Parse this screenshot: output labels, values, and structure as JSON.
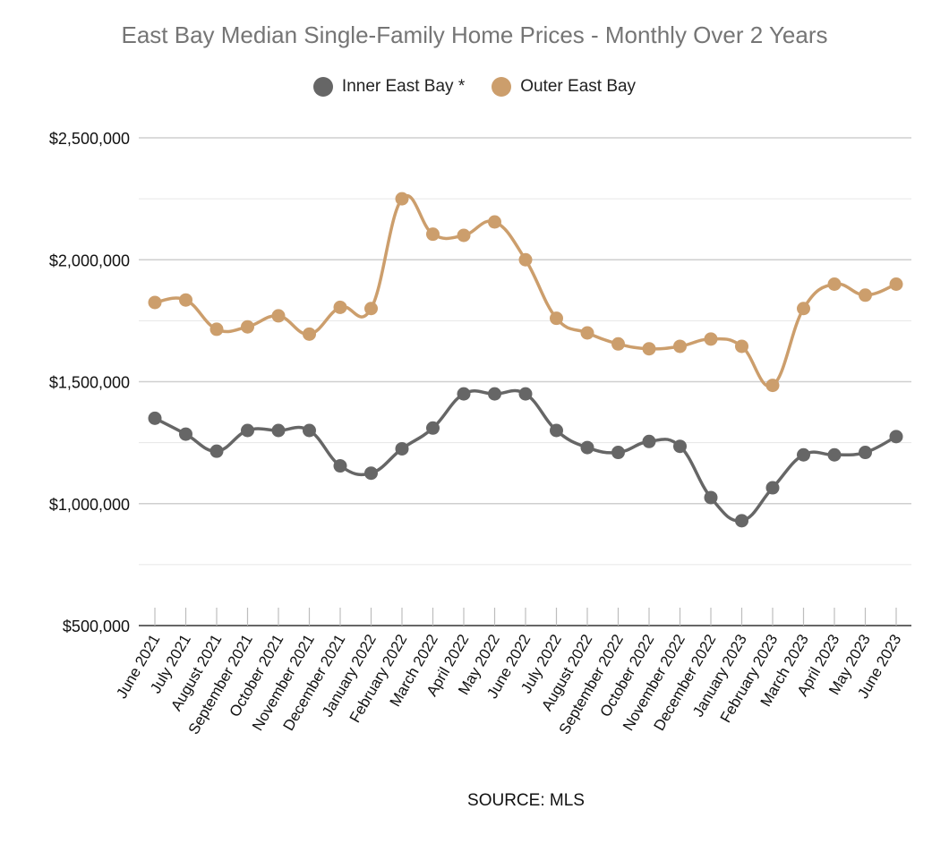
{
  "chart_data": {
    "type": "line",
    "title": "East Bay Median Single-Family Home Prices - Monthly Over 2 Years",
    "xlabel": "",
    "ylabel": "",
    "ylim": [
      500000,
      2500000
    ],
    "y_ticks": [
      "$500,000",
      "$1,000,000",
      "$1,500,000",
      "$2,000,000",
      "$2,500,000"
    ],
    "y_tick_values": [
      500000,
      1000000,
      1500000,
      2000000,
      2500000
    ],
    "grid": true,
    "legend_position": "top-center",
    "categories": [
      "June 2021",
      "July 2021",
      "August 2021",
      "September 2021",
      "October 2021",
      "November 2021",
      "December 2021",
      "January 2022",
      "February 2022",
      "March 2022",
      "April 2022",
      "May 2022",
      "June 2022",
      "July 2022",
      "August 2022",
      "September 2022",
      "October 2022",
      "November 2022",
      "December 2022",
      "January 2023",
      "February 2023",
      "March 2023",
      "April 2023",
      "May 2023",
      "June 2023"
    ],
    "series": [
      {
        "name": "Inner East Bay *",
        "color": "#666666",
        "values": [
          1350000,
          1285000,
          1215000,
          1300000,
          1300000,
          1300000,
          1155000,
          1125000,
          1225000,
          1310000,
          1450000,
          1450000,
          1450000,
          1300000,
          1230000,
          1210000,
          1255000,
          1235000,
          1025000,
          930000,
          1065000,
          1200000,
          1200000,
          1210000,
          1275000
        ]
      },
      {
        "name": "Outer East Bay",
        "color": "#cc9e6c",
        "values": [
          1825000,
          1835000,
          1715000,
          1725000,
          1770000,
          1695000,
          1805000,
          1800000,
          2250000,
          2105000,
          2100000,
          2155000,
          2000000,
          1760000,
          1700000,
          1655000,
          1635000,
          1645000,
          1675000,
          1645000,
          1485000,
          1800000,
          1900000,
          1855000,
          1900000
        ]
      }
    ],
    "source_note": "SOURCE: MLS"
  }
}
